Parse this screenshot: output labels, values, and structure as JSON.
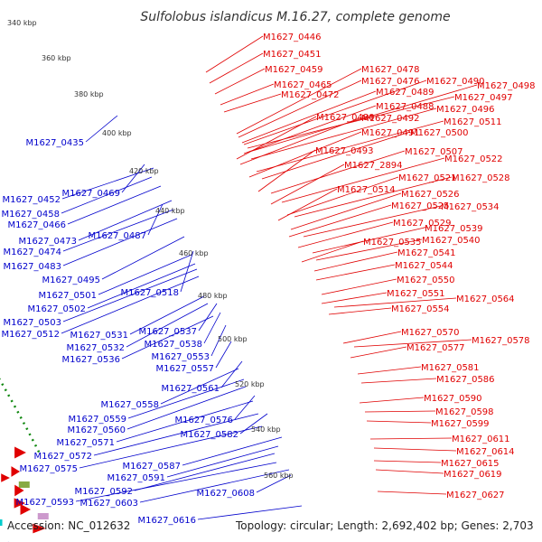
{
  "title": "Sulfolobus islandicus M.16.27, complete genome",
  "footer": {
    "accession": "Accession: NC_012632",
    "summary": "Topology: circular; Length: 2,692,402 bp; Genes: 2,703"
  },
  "colors": {
    "forward": "#e00000",
    "reverse": "#0000cc",
    "backbone": "#999999",
    "gc_track": "#118811"
  },
  "ticks": [
    "340 kbp",
    "360 kbp",
    "380 kbp",
    "400 kbp",
    "420 kbp",
    "440 kbp",
    "460 kbp",
    "480 kbp",
    "500 kbp",
    "520 kbp",
    "540 kbp",
    "560 kbp"
  ],
  "forward_labels": [
    "M1627_0446",
    "M1627_0451",
    "M1627_0459",
    "M1627_0465",
    "M1627_0472",
    "M1627_0478",
    "M1627_0476",
    "M1627_0490",
    "M1627_0498",
    "M1627_0489",
    "M1627_0497",
    "M1627_0488",
    "M1627_0496",
    "M1627_0480",
    "M1627_0492",
    "M1627_0511",
    "M1627_0491",
    "M1627_0500",
    "M1627_0493",
    "M1627_0507",
    "M1627_0522",
    "M1627_2894",
    "M1627_0521",
    "M1627_0528",
    "M1627_0514",
    "M1627_0526",
    "M1627_0525",
    "M1627_0534",
    "M1627_0529",
    "M1627_0539",
    "M1627_0535",
    "M1627_0540",
    "M1627_0541",
    "M1627_0544",
    "M1627_0550",
    "M1627_0551",
    "M1627_0564",
    "M1627_0554",
    "M1627_0570",
    "M1627_0578",
    "M1627_0577",
    "M1627_0581",
    "M1627_0586",
    "M1627_0590",
    "M1627_0598",
    "M1627_0599",
    "M1627_0611",
    "M1627_0614",
    "M1627_0615",
    "M1627_0619",
    "M1627_0627"
  ],
  "reverse_labels": [
    "M1627_0435",
    "M1627_0469",
    "M1627_0452",
    "M1627_0458",
    "M1627_0466",
    "M1627_0487",
    "M1627_0473",
    "M1627_0474",
    "M1627_0483",
    "M1627_0495",
    "M1627_0518",
    "M1627_0501",
    "M1627_0502",
    "M1627_0503",
    "M1627_0512",
    "M1627_0531",
    "M1627_0537",
    "M1627_0532",
    "M1627_0538",
    "M1627_0536",
    "M1627_0553",
    "M1627_0557",
    "M1627_0561",
    "M1627_0558",
    "M1627_0576",
    "M1627_0559",
    "M1627_0560",
    "M1627_0582",
    "M1627_0571",
    "M1627_0572",
    "M1627_0575",
    "M1627_0587",
    "M1627_0591",
    "M1627_0592",
    "M1627_0608",
    "M1627_0593",
    "M1627_0603",
    "M1627_0616"
  ]
}
